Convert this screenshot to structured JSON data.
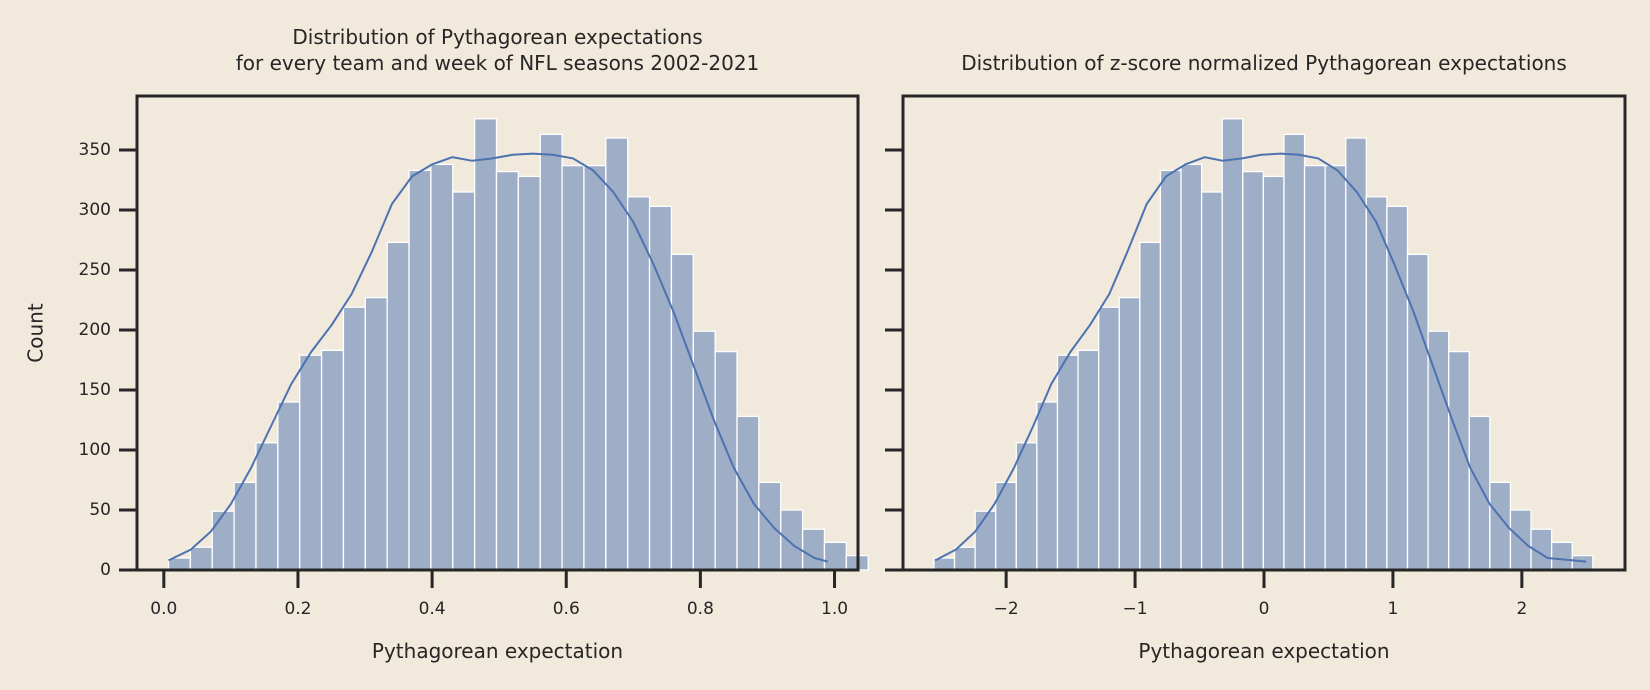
{
  "figure": {
    "background": "#f1e9dc",
    "shared_ylabel": "Count",
    "bar_color": "#9eaec7",
    "kde_color": "#4c72b0"
  },
  "chart_data": [
    {
      "type": "histogram",
      "title_lines": [
        "Distribution of Pythagorean expectations",
        "for every team and week of NFL seasons 2002-2021"
      ],
      "xlabel": "Pythagorean expectation",
      "ylabel": "Count",
      "xlim": [
        -0.04,
        1.035
      ],
      "ylim": [
        0,
        395
      ],
      "x_ticks": [
        0.0,
        0.2,
        0.4,
        0.6,
        0.8,
        1.0
      ],
      "x_tick_labels": [
        "0.0",
        "0.2",
        "0.4",
        "0.6",
        "0.8",
        "1.0"
      ],
      "y_ticks": [
        0,
        50,
        100,
        150,
        200,
        250,
        300,
        350
      ],
      "y_tick_labels": [
        "0",
        "50",
        "100",
        "150",
        "200",
        "250",
        "300",
        "350"
      ],
      "bin_start": 0.007,
      "bin_width": 0.0326,
      "counts": [
        10,
        19,
        49,
        73,
        106,
        140,
        179,
        183,
        219,
        227,
        273,
        333,
        338,
        315,
        376,
        332,
        328,
        363,
        337,
        337,
        360,
        311,
        303,
        263,
        199,
        182,
        128,
        73,
        50,
        34,
        23,
        12
      ],
      "kde_x": [
        0.007,
        0.04,
        0.07,
        0.1,
        0.13,
        0.16,
        0.19,
        0.22,
        0.25,
        0.28,
        0.31,
        0.34,
        0.37,
        0.4,
        0.43,
        0.46,
        0.49,
        0.52,
        0.55,
        0.58,
        0.61,
        0.64,
        0.67,
        0.7,
        0.73,
        0.76,
        0.79,
        0.82,
        0.85,
        0.88,
        0.91,
        0.94,
        0.97,
        0.99
      ],
      "kde_y": [
        8,
        17,
        32,
        55,
        85,
        120,
        155,
        182,
        204,
        230,
        265,
        305,
        328,
        338,
        344,
        341,
        343,
        346,
        347,
        346,
        343,
        333,
        315,
        290,
        255,
        215,
        170,
        125,
        85,
        55,
        35,
        20,
        10,
        7
      ],
      "grid": false,
      "legend": "none"
    },
    {
      "type": "histogram",
      "title_lines": [
        "Distribution of z-score normalized Pythagorean expectations"
      ],
      "xlabel": "Pythagorean expectation",
      "ylabel": "",
      "xlim": [
        -2.8,
        2.8
      ],
      "ylim": [
        0,
        395
      ],
      "x_ticks": [
        -2,
        -1,
        0,
        1,
        2
      ],
      "x_tick_labels": [
        "−2",
        "−1",
        "0",
        "1",
        "2"
      ],
      "y_ticks": [
        0,
        50,
        100,
        150,
        200,
        250,
        300,
        350
      ],
      "y_tick_labels": [],
      "bin_start": -2.56,
      "bin_width": 0.1597,
      "counts": [
        10,
        19,
        49,
        73,
        106,
        140,
        179,
        183,
        219,
        227,
        273,
        333,
        338,
        315,
        376,
        332,
        328,
        363,
        337,
        337,
        360,
        311,
        303,
        263,
        199,
        182,
        128,
        73,
        50,
        34,
        23,
        12
      ],
      "kde_x": [
        -2.55,
        -2.39,
        -2.24,
        -2.09,
        -1.94,
        -1.79,
        -1.65,
        -1.5,
        -1.35,
        -1.2,
        -1.06,
        -0.91,
        -0.76,
        -0.61,
        -0.46,
        -0.32,
        -0.17,
        -0.02,
        0.13,
        0.27,
        0.42,
        0.57,
        0.72,
        0.87,
        1.01,
        1.16,
        1.31,
        1.46,
        1.6,
        1.75,
        1.9,
        2.05,
        2.2,
        2.5
      ],
      "kde_y": [
        8,
        17,
        32,
        55,
        85,
        120,
        155,
        182,
        204,
        230,
        265,
        305,
        328,
        338,
        344,
        341,
        343,
        346,
        347,
        346,
        343,
        333,
        315,
        290,
        255,
        215,
        170,
        125,
        85,
        55,
        35,
        20,
        10,
        7
      ],
      "grid": false,
      "legend": "none"
    }
  ]
}
